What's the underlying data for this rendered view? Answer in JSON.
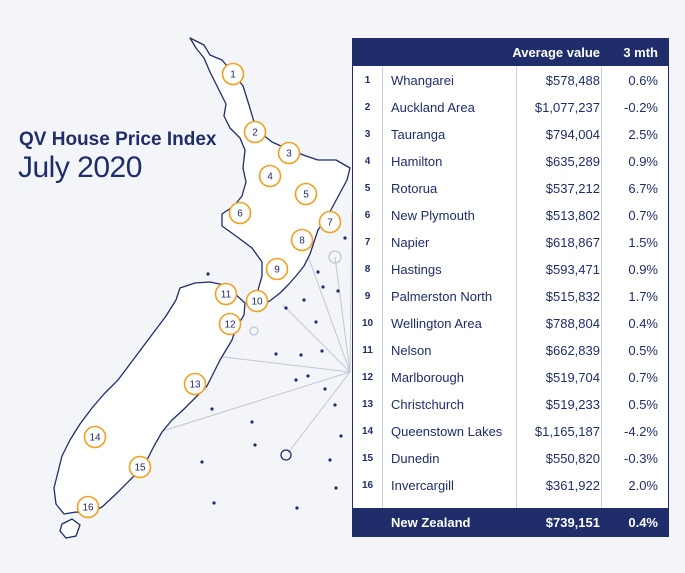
{
  "title": "QV House Price Index",
  "subtitle": "July 2020",
  "table": {
    "headers": {
      "average_value": "Average value",
      "three_month": "3 mth"
    },
    "rows": [
      {
        "num": "1",
        "name": "Whangarei",
        "value": "$578,488",
        "change": "0.6%"
      },
      {
        "num": "2",
        "name": "Auckland Area",
        "value": "$1,077,237",
        "change": "-0.2%"
      },
      {
        "num": "3",
        "name": "Tauranga",
        "value": "$794,004",
        "change": "2.5%"
      },
      {
        "num": "4",
        "name": "Hamilton",
        "value": "$635,289",
        "change": "0.9%"
      },
      {
        "num": "5",
        "name": "Rotorua",
        "value": "$537,212",
        "change": "6.7%"
      },
      {
        "num": "6",
        "name": "New Plymouth",
        "value": "$513,802",
        "change": "0.7%"
      },
      {
        "num": "7",
        "name": "Napier",
        "value": "$618,867",
        "change": "1.5%"
      },
      {
        "num": "8",
        "name": "Hastings",
        "value": "$593,471",
        "change": "0.9%"
      },
      {
        "num": "9",
        "name": "Palmerston North",
        "value": "$515,832",
        "change": "1.7%"
      },
      {
        "num": "10",
        "name": "Wellington Area",
        "value": "$788,804",
        "change": "0.4%"
      },
      {
        "num": "11",
        "name": "Nelson",
        "value": "$662,839",
        "change": "0.5%"
      },
      {
        "num": "12",
        "name": "Marlborough",
        "value": "$519,704",
        "change": "0.7%"
      },
      {
        "num": "13",
        "name": "Christchurch",
        "value": "$519,233",
        "change": "0.5%"
      },
      {
        "num": "14",
        "name": "Queenstown Lakes",
        "value": "$1,165,187",
        "change": "-4.2%"
      },
      {
        "num": "15",
        "name": "Dunedin",
        "value": "$550,820",
        "change": "-0.3%"
      },
      {
        "num": "16",
        "name": "Invercargill",
        "value": "$361,922",
        "change": "2.0%"
      }
    ],
    "total": {
      "name": "New Zealand",
      "value": "$739,151",
      "change": "0.4%"
    }
  },
  "map_markers": [
    "1",
    "2",
    "3",
    "4",
    "5",
    "6",
    "7",
    "8",
    "9",
    "10",
    "11",
    "12",
    "13",
    "14",
    "15",
    "16"
  ],
  "colors": {
    "navy": "#1f2d6b",
    "marker": "#f0a020",
    "map_fill": "#ffffff",
    "background": "#f4f5f8"
  }
}
